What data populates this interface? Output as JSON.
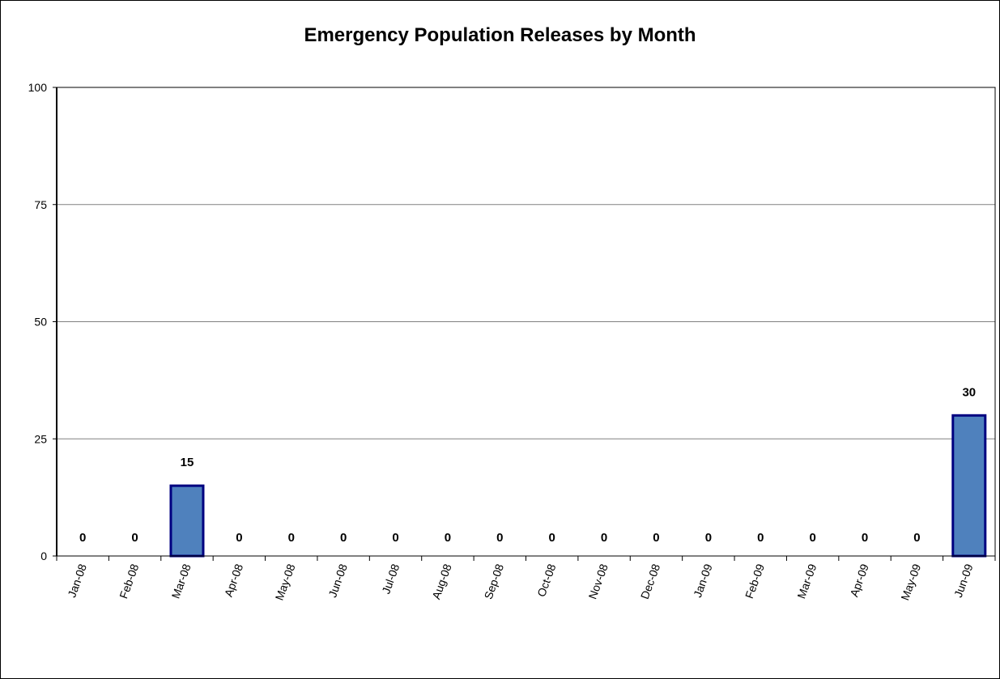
{
  "chart_data": {
    "type": "bar",
    "title": "Emergency Population Releases by Month",
    "xlabel": "",
    "ylabel": "",
    "categories": [
      "Jan-08",
      "Feb-08",
      "Mar-08",
      "Apr-08",
      "May-08",
      "Jun-08",
      "Jul-08",
      "Aug-08",
      "Sep-08",
      "Oct-08",
      "Nov-08",
      "Dec-08",
      "Jan-09",
      "Feb-09",
      "Mar-09",
      "Apr-09",
      "May-09",
      "Jun-09"
    ],
    "values": [
      0,
      0,
      15,
      0,
      0,
      0,
      0,
      0,
      0,
      0,
      0,
      0,
      0,
      0,
      0,
      0,
      0,
      30
    ],
    "data_labels": [
      "0",
      "0",
      "15",
      "0",
      "0",
      "0",
      "0",
      "0",
      "0",
      "0",
      "0",
      "0",
      "0",
      "0",
      "0",
      "0",
      "0",
      "30"
    ],
    "ylim": [
      0,
      100
    ],
    "yticks": [
      "0",
      "25",
      "50",
      "75",
      "100"
    ],
    "grid": true,
    "legend": "none",
    "colors": {
      "bar_fill": "#4f81bd",
      "bar_stroke": "#000080",
      "grid": "#808080"
    }
  }
}
